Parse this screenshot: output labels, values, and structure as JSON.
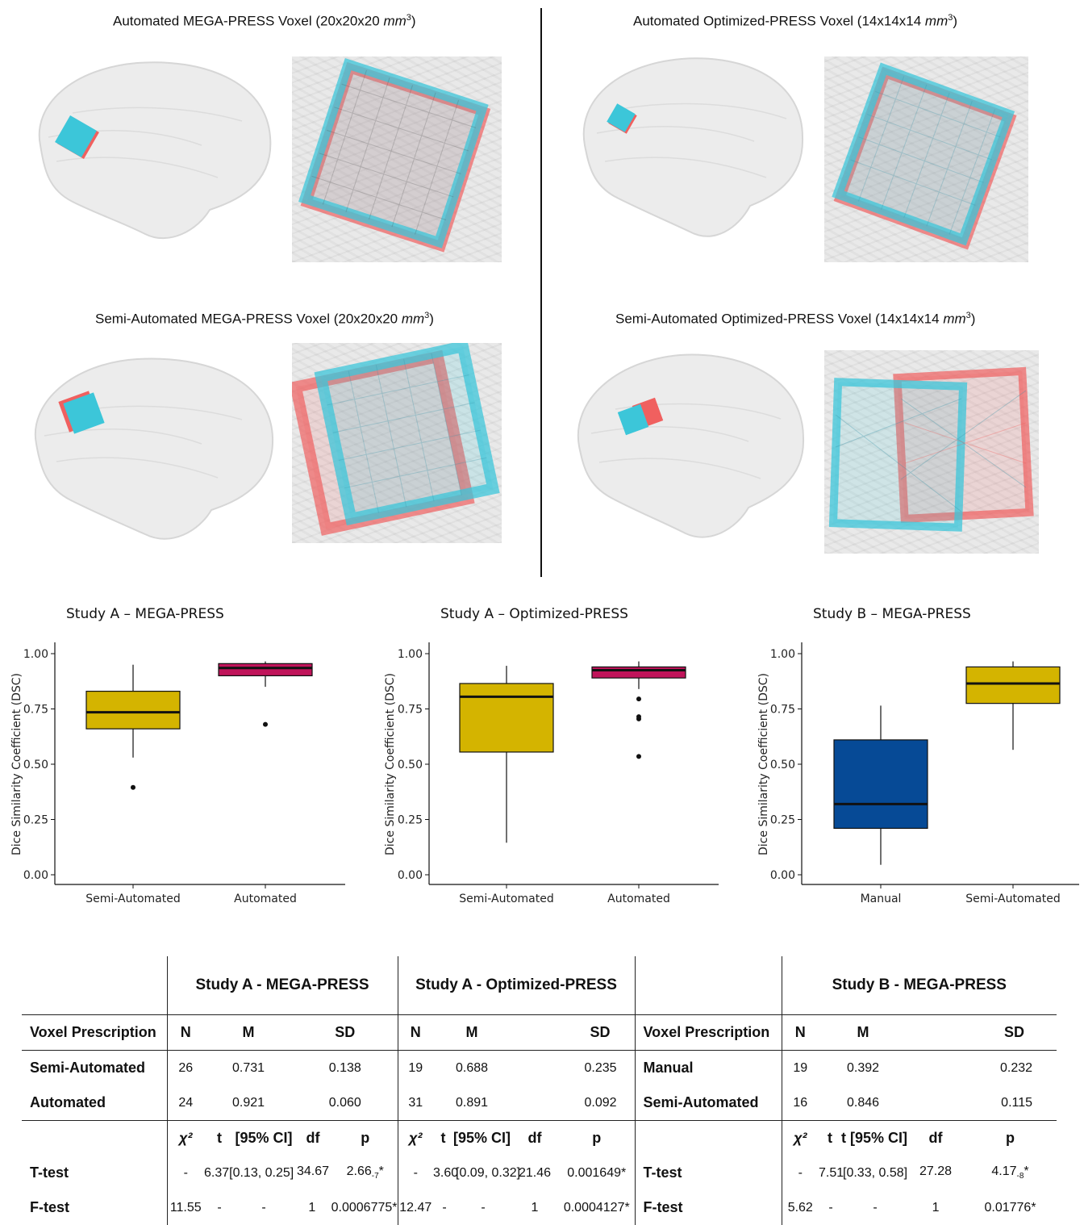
{
  "figure": {
    "panels": [
      {
        "title_prefix": "Automated MEGA-PRESS Voxel (20x20x20 ",
        "title_unit": "mm",
        "title_exp": "3",
        "title_suffix": ")"
      },
      {
        "title_prefix": "Automated Optimized-PRESS Voxel (14x14x14 ",
        "title_unit": "mm",
        "title_exp": "3",
        "title_suffix": ")"
      },
      {
        "title_prefix": "Semi-Automated MEGA-PRESS Voxel (20x20x20 ",
        "title_unit": "mm",
        "title_exp": "3",
        "title_suffix": ")"
      },
      {
        "title_prefix": "Semi-Automated Optimized-PRESS Voxel (14x14x14 ",
        "title_unit": "mm",
        "title_exp": "3",
        "title_suffix": ")"
      }
    ]
  },
  "colors": {
    "red_voxel": "#f0605f",
    "cyan_voxel": "#3cc6d9",
    "olive": "#d4b400",
    "crimson": "#c0145a",
    "navy": "#064a96"
  },
  "chart_data": [
    {
      "type": "box",
      "title": "Study A – MEGA-PRESS",
      "ylabel": "Dice Similarity Coefficient (DSC)",
      "ylim": [
        0,
        1
      ],
      "yticks": [
        "0.00",
        "0.25",
        "0.50",
        "0.75",
        "1.00"
      ],
      "categories": [
        "Semi-Automated",
        "Automated"
      ],
      "boxes": [
        {
          "q1": 0.66,
          "median": 0.735,
          "q3": 0.83,
          "whisker_low": 0.53,
          "whisker_high": 0.95,
          "outliers": [
            0.395
          ],
          "color": "#d4b400"
        },
        {
          "q1": 0.9,
          "median": 0.935,
          "q3": 0.955,
          "whisker_low": 0.85,
          "whisker_high": 0.965,
          "outliers": [
            0.68
          ],
          "color": "#c0145a"
        }
      ]
    },
    {
      "type": "box",
      "title": "Study A – Optimized-PRESS",
      "ylabel": "Dice Similarity Coefficient (DSC)",
      "ylim": [
        0,
        1
      ],
      "yticks": [
        "0.00",
        "0.25",
        "0.50",
        "0.75",
        "1.00"
      ],
      "categories": [
        "Semi-Automated",
        "Automated"
      ],
      "boxes": [
        {
          "q1": 0.555,
          "median": 0.805,
          "q3": 0.865,
          "whisker_low": 0.145,
          "whisker_high": 0.945,
          "outliers": [],
          "color": "#d4b400"
        },
        {
          "q1": 0.89,
          "median": 0.925,
          "q3": 0.94,
          "whisker_low": 0.84,
          "whisker_high": 0.965,
          "outliers": [
            0.795,
            0.715,
            0.705,
            0.535
          ],
          "color": "#c0145a"
        }
      ]
    },
    {
      "type": "box",
      "title": "Study B – MEGA-PRESS",
      "ylabel": "Dice Similarity Coefficient (DSC)",
      "ylim": [
        0,
        1
      ],
      "yticks": [
        "0.00",
        "0.25",
        "0.50",
        "0.75",
        "1.00"
      ],
      "categories": [
        "Manual",
        "Semi-Automated"
      ],
      "boxes": [
        {
          "q1": 0.21,
          "median": 0.32,
          "q3": 0.61,
          "whisker_low": 0.045,
          "whisker_high": 0.765,
          "outliers": [],
          "color": "#064a96"
        },
        {
          "q1": 0.775,
          "median": 0.865,
          "q3": 0.94,
          "whisker_low": 0.565,
          "whisker_high": 0.965,
          "outliers": [],
          "color": "#d4b400"
        }
      ]
    }
  ],
  "table": {
    "groups": [
      "Study A - MEGA-PRESS",
      "Study A - Optimized-PRESS",
      "Study B - MEGA-PRESS"
    ],
    "col_voxel": "Voxel Prescription",
    "col_n": "N",
    "col_m": "M",
    "col_sd": "SD",
    "col_chi": "χ²",
    "col_t": "t",
    "col_ci": "[95% CI]",
    "col_ci_b": "t [95% CI]",
    "col_df": "df",
    "col_p": "p",
    "rows_left": [
      {
        "label": "Semi-Automated",
        "a_n": "26",
        "a_m": "0.731",
        "a_sd": "0.138",
        "o_n": "19",
        "o_m": "0.688",
        "o_sd": "0.235"
      },
      {
        "label": "Automated",
        "a_n": "24",
        "a_m": "0.921",
        "a_sd": "0.060",
        "o_n": "31",
        "o_m": "0.891",
        "o_sd": "0.092"
      }
    ],
    "rows_right": [
      {
        "label": "Manual",
        "n": "19",
        "m": "0.392",
        "sd": "0.232"
      },
      {
        "label": "Semi-Automated",
        "n": "16",
        "m": "0.846",
        "sd": "0.115"
      }
    ],
    "ttest": {
      "label": "T-test",
      "a": {
        "chi": "-",
        "t": "6.37",
        "ci": "[0.13, 0.25]",
        "df": "34.67",
        "p": "2.66",
        "p_sub": "-7",
        "p_star": "*"
      },
      "o": {
        "chi": "-",
        "t": "3.60",
        "ci": "[0.09, 0.32]",
        "df": "21.46",
        "p": "0.001649*"
      },
      "b": {
        "chi": "-",
        "t": "7.51",
        "ci": "[0.33, 0.58]",
        "df": "27.28",
        "p": "4.17",
        "p_sub": "-8",
        "p_star": "*"
      }
    },
    "ftest": {
      "label": "F-test",
      "a": {
        "chi": "11.55",
        "t": "-",
        "ci": "-",
        "df": "1",
        "p": "0.0006775*"
      },
      "o": {
        "chi": "12.47",
        "t": "-",
        "ci": "-",
        "df": "1",
        "p": "0.0004127*"
      },
      "b": {
        "chi": "5.62",
        "t": "-",
        "ci": "-",
        "df": "1",
        "p": "0.01776*"
      }
    }
  }
}
